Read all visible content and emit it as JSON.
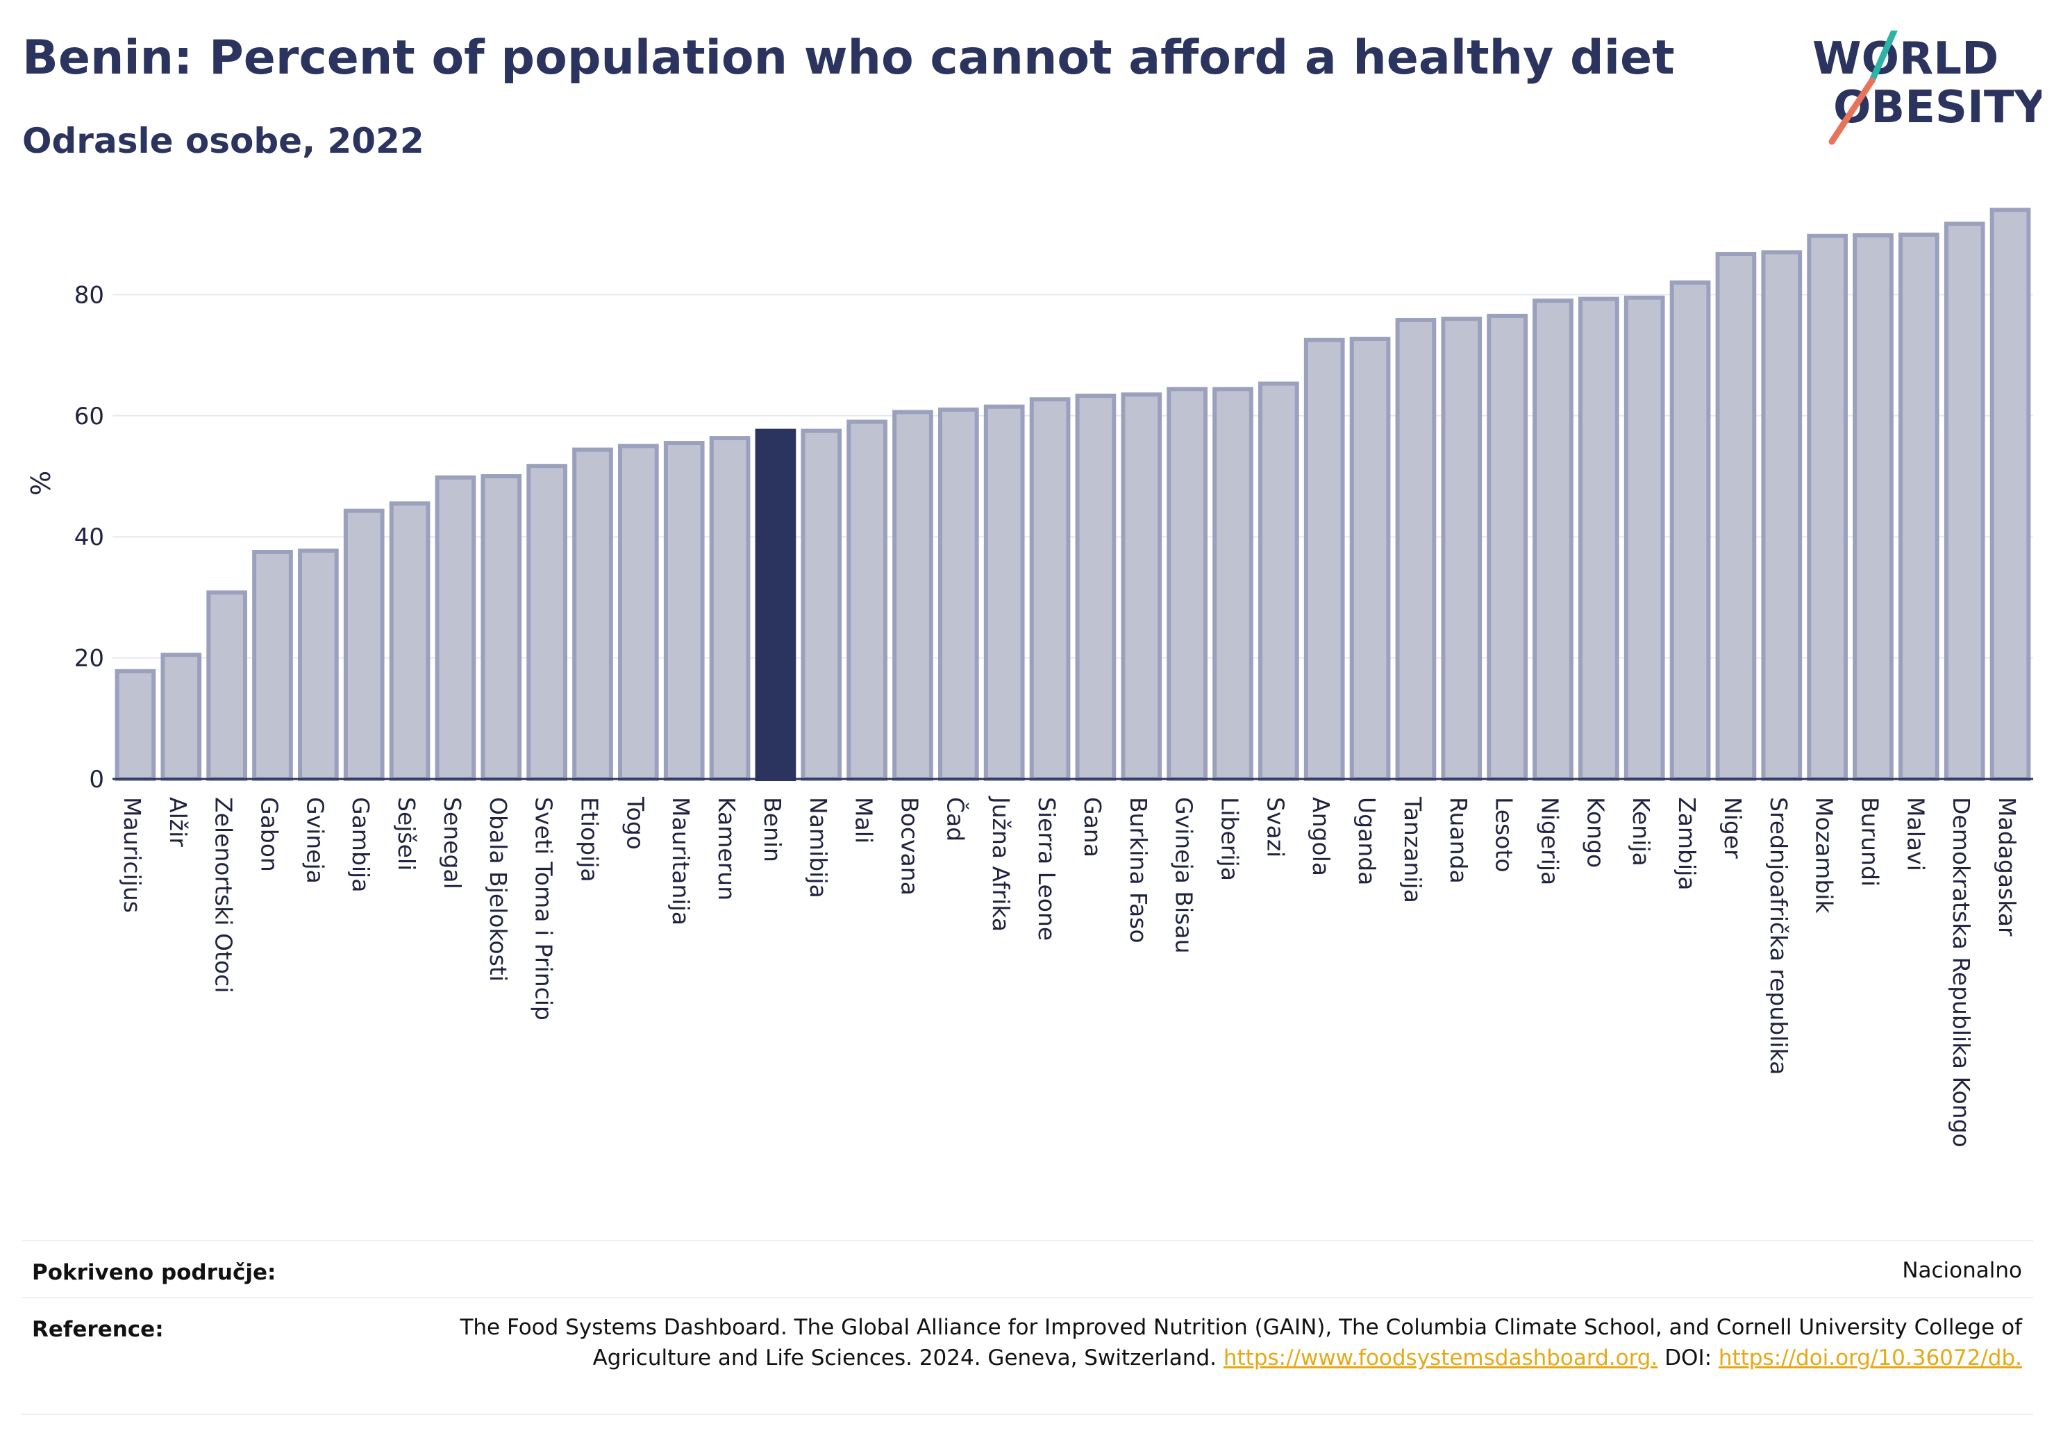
{
  "title": "Benin: Percent of population who cannot afford a healthy diet",
  "subtitle": "Odrasle osobe, 2022",
  "logo": {
    "line1": "WORLD",
    "line2": "OBESITY"
  },
  "colors": {
    "bar": "#bfc3d1",
    "bar_border": "#9ba0bd",
    "highlight": "#2b335f",
    "grid": "#e6e8f0",
    "axis": "#2b335f"
  },
  "chart_data": {
    "type": "bar",
    "ylabel": "%",
    "xlabel": "",
    "ylim": [
      0,
      100
    ],
    "yticks": [
      0,
      20,
      40,
      60,
      80
    ],
    "highlight": "Benin",
    "categories": [
      "Mauricijus",
      "Alžir",
      "Zelenortski Otoci",
      "Gabon",
      "Gvineja",
      "Gambija",
      "Sejšeli",
      "Senegal",
      "Obala Bjelokosti",
      "Sveti Toma i Princip",
      "Etiopija",
      "Togo",
      "Mauritanija",
      "Kamerun",
      "Benin",
      "Namibija",
      "Mali",
      "Bocvana",
      "Čad",
      "Južna Afrika",
      "Sierra Leone",
      "Gana",
      "Burkina Faso",
      "Gvineja Bisau",
      "Liberija",
      "Svazi",
      "Angola",
      "Uganda",
      "Tanzanija",
      "Ruanda",
      "Lesoto",
      "Nigerija",
      "Kongo",
      "Kenija",
      "Zambija",
      "Niger",
      "Srednjoafrička republika",
      "Mozambik",
      "Burundi",
      "Malavi",
      "Demokratska Republika Kongo",
      "Madagaskar"
    ],
    "values": [
      17.8,
      20.5,
      30.8,
      37.5,
      37.7,
      44.3,
      45.5,
      49.8,
      50.0,
      51.7,
      54.4,
      55.0,
      55.5,
      56.3,
      57.5,
      57.5,
      59.0,
      60.6,
      61.0,
      61.5,
      62.7,
      63.3,
      63.5,
      64.4,
      64.4,
      65.3,
      72.5,
      72.7,
      75.8,
      76.0,
      76.5,
      79.0,
      79.3,
      79.5,
      82.0,
      86.7,
      87.0,
      89.7,
      89.8,
      89.9,
      91.7,
      94.0
    ]
  },
  "footer": {
    "coverage_label": "Pokriveno područje:",
    "coverage_value": "Nacionalno",
    "reference_label": "Reference:",
    "reference_text": "The Food Systems Dashboard. The Global Alliance for Improved Nutrition (GAIN), The Columbia Climate School, and Cornell University College of Agriculture and Life Sciences. 2024. Geneva, Switzerland.",
    "reference_link1": "https://www.foodsystemsdashboard.org.",
    "reference_doi_label": "DOI:",
    "reference_link2": "https://doi.org/10.36072/db."
  }
}
